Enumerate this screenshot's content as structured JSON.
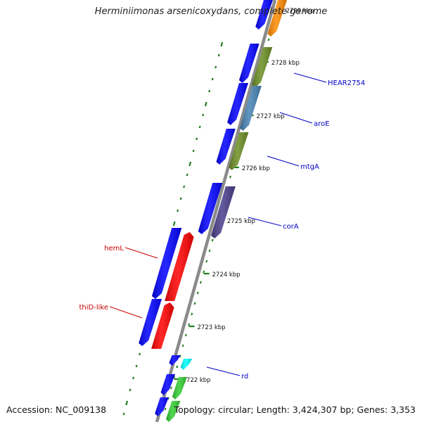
{
  "title": "Herminiimonas arsenicoxydans, complete genome",
  "accession": "Accession: NC_009138",
  "meta": "Topology: circular; Length: 3,424,307 bp; Genes: 3,353",
  "colors": {
    "backbone": "#8a8a8a",
    "tick": "#1e7d1e",
    "forward": "#0000ff",
    "red": "#ff0000",
    "olive": "#6b8e23",
    "steelblue": "#4682b4",
    "slateblue": "#483d8b",
    "orange": "#ff8c00",
    "cyan": "#00ffff",
    "green": "#32cd32",
    "label_blue": "#0000c8",
    "label_red": "#c80000"
  },
  "ticks": [
    {
      "label": "2729 kbp"
    },
    {
      "label": "2728 kbp"
    },
    {
      "label": "2727 kbp"
    },
    {
      "label": "2726 kbp"
    },
    {
      "label": "2725 kbp"
    },
    {
      "label": "2724 kbp"
    },
    {
      "label": "2723 kbp"
    },
    {
      "label": "2722 kbp"
    }
  ],
  "gene_labels": [
    {
      "text": "HEAR2754",
      "color": "label_blue"
    },
    {
      "text": "aroE",
      "color": "label_blue"
    },
    {
      "text": "mtgA",
      "color": "label_blue"
    },
    {
      "text": "corA",
      "color": "label_blue"
    },
    {
      "text": "hemL",
      "color": "label_red"
    },
    {
      "text": "thiD-like",
      "color": "label_red"
    },
    {
      "text": "rd",
      "color": "label_blue"
    }
  ]
}
